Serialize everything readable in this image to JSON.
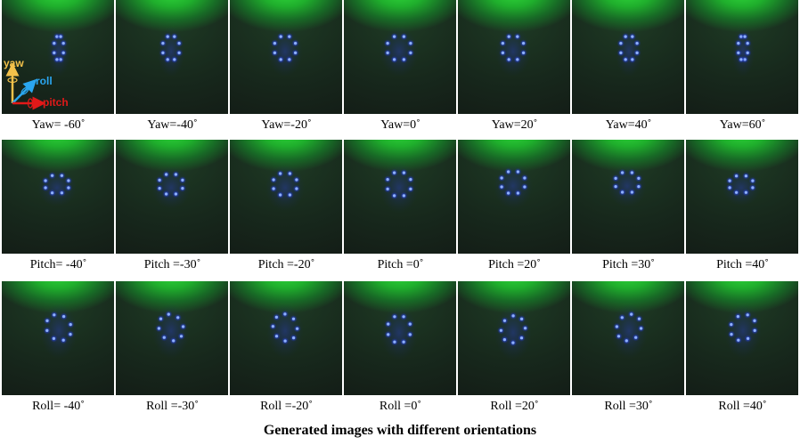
{
  "axes_legend": {
    "yaw": "yaw",
    "roll": "roll",
    "pitch": "pitch",
    "colors": {
      "yaw": "#f3c14a",
      "roll": "#2aa6f0",
      "pitch": "#e11919"
    }
  },
  "rows": [
    {
      "name": "yaw",
      "captions": [
        "Yaw= -60˚",
        "Yaw=-40˚",
        "Yaw=-20˚",
        "Yaw=0˚",
        "Yaw=20˚",
        "Yaw=40˚",
        "Yaw=60˚"
      ]
    },
    {
      "name": "pitch",
      "captions": [
        "Pitch= -40˚",
        "Pitch =-30˚",
        "Pitch =-20˚",
        "Pitch =0˚",
        "Pitch =20˚",
        "Pitch =30˚",
        "Pitch =40˚"
      ]
    },
    {
      "name": "roll",
      "captions": [
        "Roll= -40˚",
        "Roll =-30˚",
        "Roll =-20˚",
        "Roll =0˚",
        "Roll =20˚",
        "Roll =30˚",
        "Roll =40˚"
      ]
    }
  ],
  "footer_title": "Generated images with different orientations"
}
